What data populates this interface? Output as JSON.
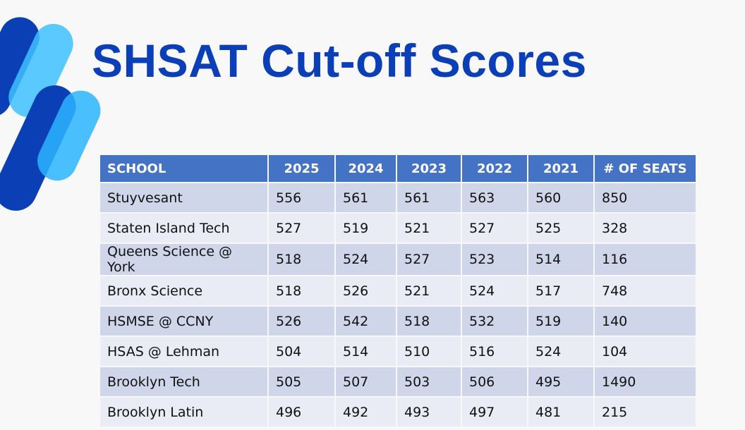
{
  "header": {
    "title": "SHSAT Cut-off Scores"
  },
  "table": {
    "columns": [
      "SCHOOL",
      "2025",
      "2024",
      "2023",
      "2022",
      "2021",
      "# OF SEATS"
    ],
    "rows": [
      [
        "Stuyvesant",
        556,
        561,
        561,
        563,
        560,
        850
      ],
      [
        "Staten Island Tech",
        527,
        519,
        521,
        527,
        525,
        328
      ],
      [
        "Queens Science @ York",
        518,
        524,
        527,
        523,
        514,
        116
      ],
      [
        "Bronx Science",
        518,
        526,
        521,
        524,
        517,
        748
      ],
      [
        "HSMSE @ CCNY",
        526,
        542,
        518,
        532,
        519,
        140
      ],
      [
        "HSAS @ Lehman",
        504,
        514,
        510,
        516,
        524,
        104
      ],
      [
        "Brooklyn Tech",
        505,
        507,
        503,
        506,
        495,
        1490
      ],
      [
        "Brooklyn Latin",
        496,
        492,
        493,
        497,
        481,
        215
      ]
    ]
  }
}
